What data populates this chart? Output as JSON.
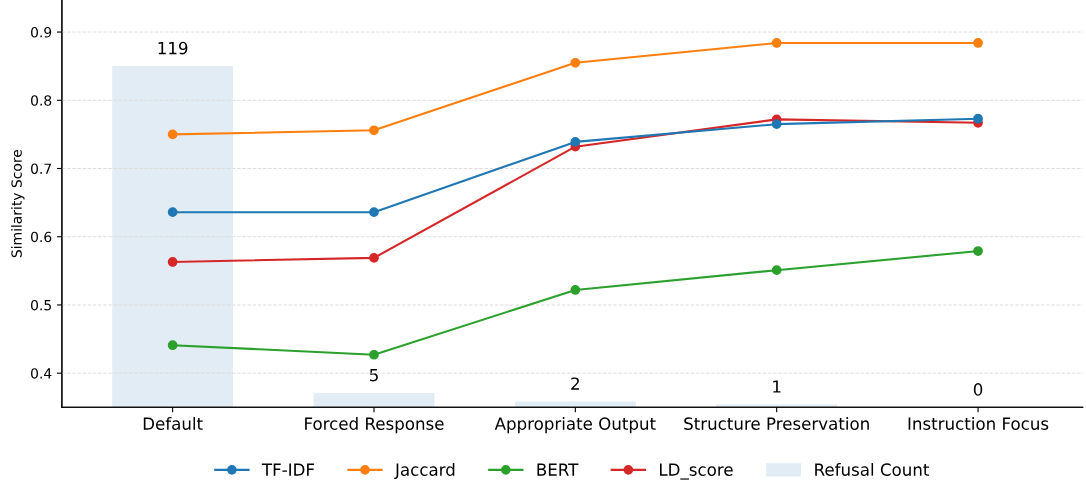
{
  "chart_data": {
    "type": "line",
    "ylabel": "Similarity Score",
    "categories": [
      "Default",
      "Forced Response",
      "Appropriate Output",
      "Structure Preservation",
      "Instruction Focus"
    ],
    "series": [
      {
        "name": "TF-IDF",
        "color": "#1f77b4",
        "values": [
          0.636,
          0.636,
          0.739,
          0.765,
          0.773
        ]
      },
      {
        "name": "Jaccard",
        "color": "#ff7f0e",
        "values": [
          0.75,
          0.756,
          0.855,
          0.884,
          0.884
        ]
      },
      {
        "name": "BERT",
        "color": "#2ca02c",
        "values": [
          0.441,
          0.427,
          0.522,
          0.551,
          0.579
        ]
      },
      {
        "name": "LD_score",
        "color": "#d62728",
        "values": [
          0.563,
          0.569,
          0.732,
          0.772,
          0.767
        ]
      },
      {
        "name": "Refusal Count",
        "type": "bar",
        "axis": "y2",
        "color": "#e1ecf4",
        "values": [
          119,
          5,
          2,
          1,
          0
        ],
        "value_labels": [
          "119",
          "5",
          "2",
          "1",
          "0"
        ]
      }
    ],
    "ylim": [
      0.35,
      0.947
    ],
    "yticks": [
      0.4,
      0.5,
      0.6,
      0.7,
      0.8,
      0.9
    ],
    "y2lim": [
      0,
      142
    ],
    "grid": "y",
    "legend": "bottom",
    "marker": "circle",
    "line_style": "solid"
  }
}
